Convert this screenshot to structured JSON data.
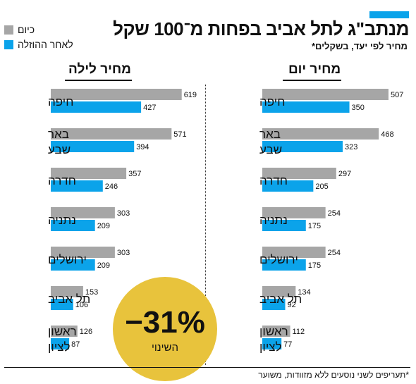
{
  "title": "מנתב\"ג לתל אביב בפחות מ־100 שקל",
  "subtitle": "מחיר לפי יעד, בשקלים*",
  "legend": [
    {
      "label": "כיום",
      "color": "#a6a6a6"
    },
    {
      "label": "לאחר ההוזלה",
      "color": "#0ba3ea"
    }
  ],
  "colors": {
    "accent": "#0ba3ea",
    "current": "#a6a6a6",
    "after": "#0ba3ea",
    "badge": "#e8c33c"
  },
  "badge": {
    "value": "−31%",
    "caption": "השינוי"
  },
  "footnote": "*תעריפים לשני נוסעים ללא מזוודות, משוער",
  "chart_data": [
    {
      "type": "bar",
      "title": "מחיר יום",
      "categories": [
        [
          "חיפה"
        ],
        [
          "באר",
          "שבע"
        ],
        [
          "חדרה"
        ],
        [
          "נתניה"
        ],
        [
          "ירושלים"
        ],
        [
          "תל אביב"
        ],
        [
          "ראשון",
          "לציון"
        ]
      ],
      "series": [
        {
          "name": "כיום",
          "values": [
            507,
            468,
            297,
            254,
            254,
            134,
            112
          ]
        },
        {
          "name": "לאחר ההוזלה",
          "values": [
            350,
            323,
            205,
            175,
            175,
            92,
            77
          ]
        }
      ]
    },
    {
      "type": "bar",
      "title": "מחיר לילה",
      "categories": [
        [
          "חיפה"
        ],
        [
          "באר",
          "שבע"
        ],
        [
          "חדרה"
        ],
        [
          "נתניה"
        ],
        [
          "ירושלים"
        ],
        [
          "תל אביב"
        ],
        [
          "ראשון",
          "לציון"
        ]
      ],
      "series": [
        {
          "name": "כיום",
          "values": [
            619,
            571,
            357,
            303,
            303,
            153,
            126
          ]
        },
        {
          "name": "לאחר ההוזלה",
          "values": [
            427,
            394,
            246,
            209,
            209,
            106,
            87
          ]
        }
      ]
    }
  ]
}
